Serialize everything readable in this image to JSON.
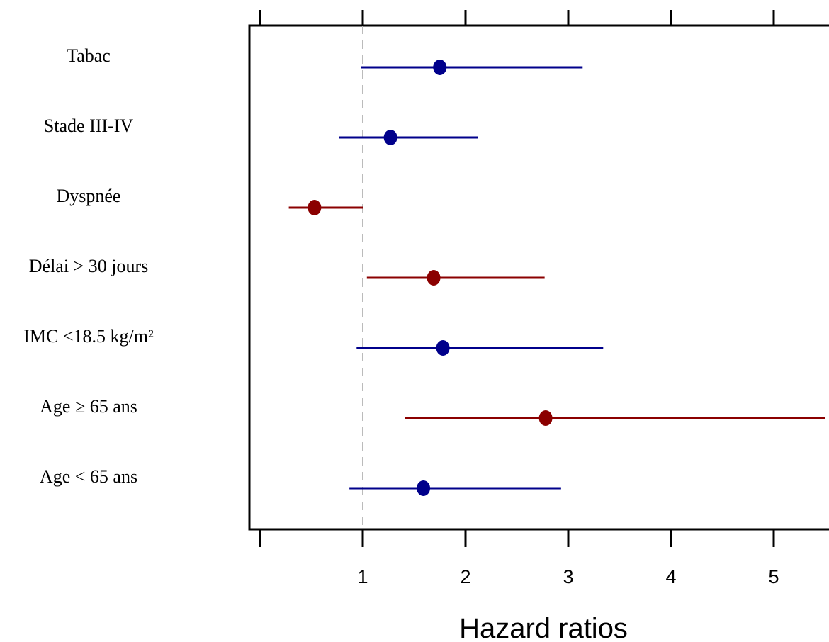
{
  "chart_data": {
    "type": "scatter",
    "subtype": "forest-plot",
    "title": "",
    "xlabel": "Hazard ratios",
    "ylabel": "",
    "xlim": [
      0,
      5.5
    ],
    "x_ticks": [
      1,
      2,
      3,
      4,
      5
    ],
    "reference_line": 1,
    "grid": false,
    "colors": {
      "blue": "#00008B",
      "red": "#8B0000"
    },
    "rows": [
      {
        "label": "Tabac",
        "hr": 1.75,
        "lower": 0.98,
        "upper": 3.14,
        "color": "#00008B"
      },
      {
        "label": "Stade III-IV",
        "hr": 1.27,
        "lower": 0.77,
        "upper": 2.12,
        "color": "#00008B"
      },
      {
        "label": "Dyspnée",
        "hr": 0.53,
        "lower": 0.28,
        "upper": 1.0,
        "color": "#8B0000"
      },
      {
        "label": "Délai > 30 jours",
        "hr": 1.69,
        "lower": 1.04,
        "upper": 2.77,
        "color": "#8B0000"
      },
      {
        "label": "IMC <18.5 kg/m²",
        "hr": 1.78,
        "lower": 0.94,
        "upper": 3.34,
        "color": "#00008B"
      },
      {
        "label": "Age ≥ 65 ans",
        "hr": 2.78,
        "lower": 1.41,
        "upper": 5.5,
        "color": "#8B0000"
      },
      {
        "label": "Age < 65 ans",
        "hr": 1.59,
        "lower": 0.87,
        "upper": 2.93,
        "color": "#00008B"
      }
    ]
  }
}
